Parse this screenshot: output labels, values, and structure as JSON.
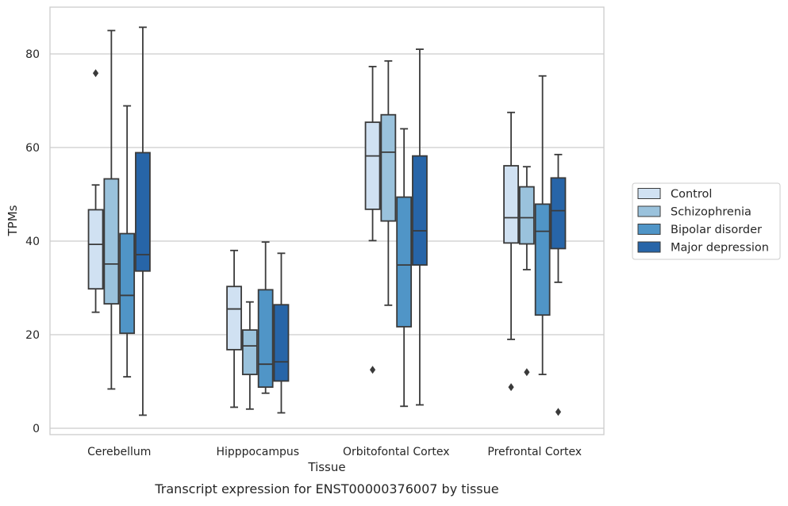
{
  "chart_data": {
    "type": "box",
    "xlabel": "Tissue",
    "ylabel": "TPMs",
    "caption": "Transcript expression for ENST00000376007 by tissue",
    "ylim": [
      -1.5,
      90
    ],
    "yticks": [
      0,
      20,
      40,
      60,
      80
    ],
    "grid": true,
    "legend_position": "right",
    "categories": [
      "Cerebellum",
      "Hipppocampus",
      "Orbitofontal Cortex",
      "Prefrontal Cortex"
    ],
    "series": [
      {
        "name": "Control",
        "color": "#d0e1f2",
        "boxes": [
          {
            "min": 24.8,
            "q1": 29.8,
            "median": 39.3,
            "q3": 46.7,
            "max": 52.0,
            "outliers": [
              75.9
            ]
          },
          {
            "min": 4.5,
            "q1": 16.8,
            "median": 25.5,
            "q3": 30.3,
            "max": 38.0,
            "outliers": []
          },
          {
            "min": 40.1,
            "q1": 46.8,
            "median": 58.2,
            "q3": 65.4,
            "max": 77.3,
            "outliers": [
              12.5
            ]
          },
          {
            "min": 19.0,
            "q1": 39.6,
            "median": 45.0,
            "q3": 56.1,
            "max": 67.5,
            "outliers": [
              8.8
            ]
          }
        ]
      },
      {
        "name": "Schizophrenia",
        "color": "#9ac2dc",
        "boxes": [
          {
            "min": 8.4,
            "q1": 26.6,
            "median": 35.1,
            "q3": 53.3,
            "max": 85.0,
            "outliers": []
          },
          {
            "min": 4.1,
            "q1": 11.5,
            "median": 17.6,
            "q3": 21.0,
            "max": 27.0,
            "outliers": []
          },
          {
            "min": 26.3,
            "q1": 44.3,
            "median": 59.0,
            "q3": 67.0,
            "max": 78.5,
            "outliers": []
          },
          {
            "min": 33.9,
            "q1": 39.4,
            "median": 45.0,
            "q3": 51.6,
            "max": 55.9,
            "outliers": [
              12.0
            ]
          }
        ]
      },
      {
        "name": "Bipolar disorder",
        "color": "#5095c7",
        "boxes": [
          {
            "min": 11.0,
            "q1": 20.3,
            "median": 28.4,
            "q3": 41.6,
            "max": 68.9,
            "outliers": []
          },
          {
            "min": 7.5,
            "q1": 8.8,
            "median": 13.7,
            "q3": 29.6,
            "max": 39.8,
            "outliers": []
          },
          {
            "min": 4.7,
            "q1": 21.7,
            "median": 34.9,
            "q3": 49.4,
            "max": 64.0,
            "outliers": []
          },
          {
            "min": 11.5,
            "q1": 24.2,
            "median": 42.1,
            "q3": 47.9,
            "max": 75.3,
            "outliers": []
          }
        ]
      },
      {
        "name": "Major depression",
        "color": "#2765a8",
        "boxes": [
          {
            "min": 2.8,
            "q1": 33.6,
            "median": 37.1,
            "q3": 58.9,
            "max": 85.7,
            "outliers": []
          },
          {
            "min": 3.3,
            "q1": 10.1,
            "median": 14.2,
            "q3": 26.4,
            "max": 37.4,
            "outliers": []
          },
          {
            "min": 5.0,
            "q1": 34.9,
            "median": 42.2,
            "q3": 58.2,
            "max": 81.0,
            "outliers": []
          },
          {
            "min": 31.2,
            "q1": 38.4,
            "median": 46.5,
            "q3": 53.5,
            "max": 58.5,
            "outliers": [
              3.5
            ]
          }
        ]
      }
    ]
  }
}
